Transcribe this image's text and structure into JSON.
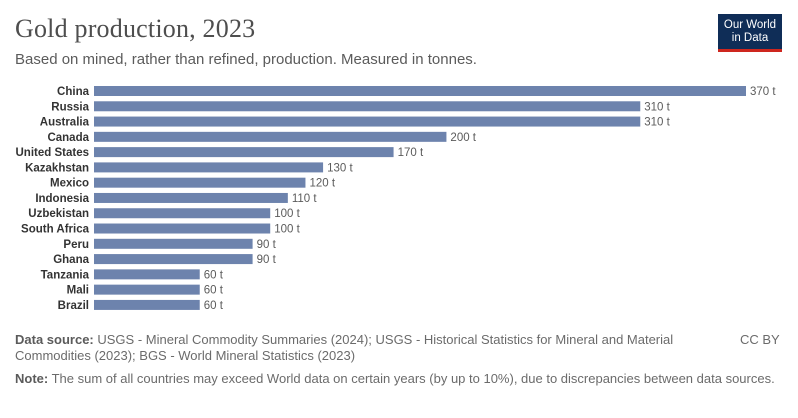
{
  "header": {
    "title": "Gold production, 2023",
    "subtitle": "Based on mined, rather than refined, production. Measured in tonnes.",
    "logo_line1": "Our World",
    "logo_line2": "in Data"
  },
  "footer": {
    "source_label": "Data source:",
    "source_text": "USGS - Mineral Commodity Summaries (2024); USGS - Historical Statistics for Mineral and Material Commodities (2023); BGS - World Mineral Statistics (2023)",
    "license": "CC BY",
    "note_label": "Note:",
    "note_text": "The sum of all countries may exceed World data on certain years (by up to 10%), due to discrepancies between data sources."
  },
  "colors": {
    "bar": "#6d83ad",
    "label": "#333333",
    "value": "#5b5b5b"
  },
  "chart_data": {
    "type": "bar",
    "orientation": "horizontal",
    "unit": "t",
    "categories": [
      "China",
      "Russia",
      "Australia",
      "Canada",
      "United States",
      "Kazakhstan",
      "Mexico",
      "Indonesia",
      "Uzbekistan",
      "South Africa",
      "Peru",
      "Ghana",
      "Tanzania",
      "Mali",
      "Brazil"
    ],
    "values": [
      370,
      310,
      310,
      200,
      170,
      130,
      120,
      110,
      100,
      100,
      90,
      90,
      60,
      60,
      60
    ],
    "value_labels": [
      "370 t",
      "310 t",
      "310 t",
      "200 t",
      "170 t",
      "130 t",
      "120 t",
      "110 t",
      "100 t",
      "100 t",
      "90 t",
      "90 t",
      "60 t",
      "60 t",
      "60 t"
    ],
    "xlim": [
      0,
      370
    ],
    "grid": false,
    "legend": "none"
  }
}
